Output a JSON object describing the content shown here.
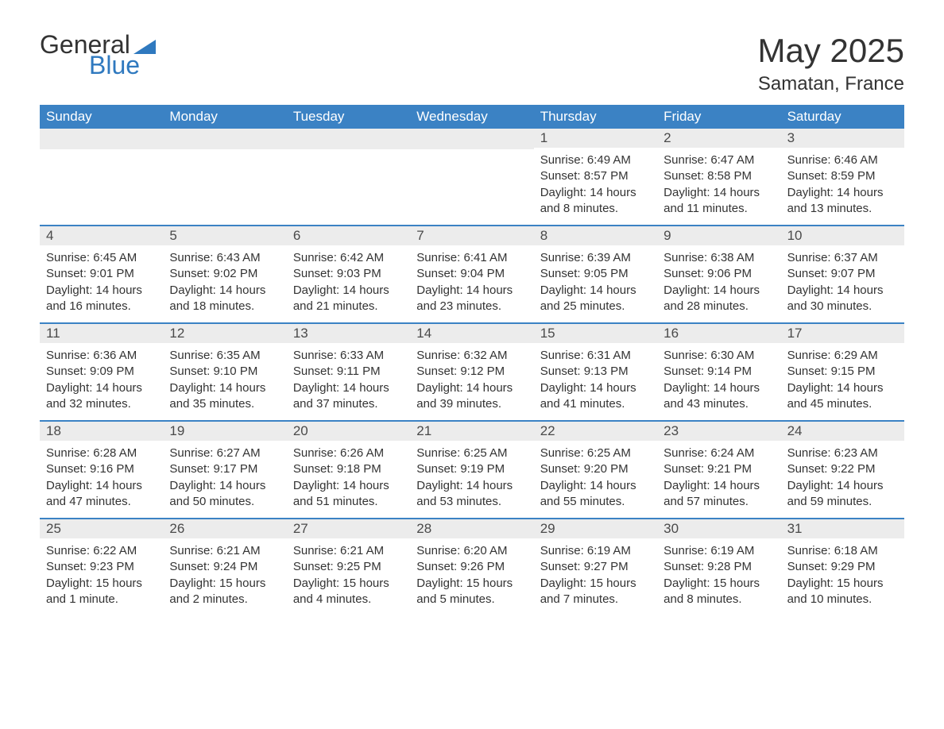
{
  "logo": {
    "text1": "General",
    "text2": "Blue"
  },
  "header": {
    "month_title": "May 2025",
    "location": "Samatan, France"
  },
  "colors": {
    "header_bg": "#3b82c4",
    "header_text": "#ffffff",
    "daynum_bg": "#ececec",
    "daynum_text": "#4a4a4a",
    "body_text": "#333333",
    "divider": "#3b82c4",
    "logo_accent": "#2f79bf"
  },
  "weekdays": [
    "Sunday",
    "Monday",
    "Tuesday",
    "Wednesday",
    "Thursday",
    "Friday",
    "Saturday"
  ],
  "weeks": [
    [
      {
        "day": "",
        "sunrise": "",
        "sunset": "",
        "daylight": ""
      },
      {
        "day": "",
        "sunrise": "",
        "sunset": "",
        "daylight": ""
      },
      {
        "day": "",
        "sunrise": "",
        "sunset": "",
        "daylight": ""
      },
      {
        "day": "",
        "sunrise": "",
        "sunset": "",
        "daylight": ""
      },
      {
        "day": "1",
        "sunrise": "Sunrise: 6:49 AM",
        "sunset": "Sunset: 8:57 PM",
        "daylight": "Daylight: 14 hours and 8 minutes."
      },
      {
        "day": "2",
        "sunrise": "Sunrise: 6:47 AM",
        "sunset": "Sunset: 8:58 PM",
        "daylight": "Daylight: 14 hours and 11 minutes."
      },
      {
        "day": "3",
        "sunrise": "Sunrise: 6:46 AM",
        "sunset": "Sunset: 8:59 PM",
        "daylight": "Daylight: 14 hours and 13 minutes."
      }
    ],
    [
      {
        "day": "4",
        "sunrise": "Sunrise: 6:45 AM",
        "sunset": "Sunset: 9:01 PM",
        "daylight": "Daylight: 14 hours and 16 minutes."
      },
      {
        "day": "5",
        "sunrise": "Sunrise: 6:43 AM",
        "sunset": "Sunset: 9:02 PM",
        "daylight": "Daylight: 14 hours and 18 minutes."
      },
      {
        "day": "6",
        "sunrise": "Sunrise: 6:42 AM",
        "sunset": "Sunset: 9:03 PM",
        "daylight": "Daylight: 14 hours and 21 minutes."
      },
      {
        "day": "7",
        "sunrise": "Sunrise: 6:41 AM",
        "sunset": "Sunset: 9:04 PM",
        "daylight": "Daylight: 14 hours and 23 minutes."
      },
      {
        "day": "8",
        "sunrise": "Sunrise: 6:39 AM",
        "sunset": "Sunset: 9:05 PM",
        "daylight": "Daylight: 14 hours and 25 minutes."
      },
      {
        "day": "9",
        "sunrise": "Sunrise: 6:38 AM",
        "sunset": "Sunset: 9:06 PM",
        "daylight": "Daylight: 14 hours and 28 minutes."
      },
      {
        "day": "10",
        "sunrise": "Sunrise: 6:37 AM",
        "sunset": "Sunset: 9:07 PM",
        "daylight": "Daylight: 14 hours and 30 minutes."
      }
    ],
    [
      {
        "day": "11",
        "sunrise": "Sunrise: 6:36 AM",
        "sunset": "Sunset: 9:09 PM",
        "daylight": "Daylight: 14 hours and 32 minutes."
      },
      {
        "day": "12",
        "sunrise": "Sunrise: 6:35 AM",
        "sunset": "Sunset: 9:10 PM",
        "daylight": "Daylight: 14 hours and 35 minutes."
      },
      {
        "day": "13",
        "sunrise": "Sunrise: 6:33 AM",
        "sunset": "Sunset: 9:11 PM",
        "daylight": "Daylight: 14 hours and 37 minutes."
      },
      {
        "day": "14",
        "sunrise": "Sunrise: 6:32 AM",
        "sunset": "Sunset: 9:12 PM",
        "daylight": "Daylight: 14 hours and 39 minutes."
      },
      {
        "day": "15",
        "sunrise": "Sunrise: 6:31 AM",
        "sunset": "Sunset: 9:13 PM",
        "daylight": "Daylight: 14 hours and 41 minutes."
      },
      {
        "day": "16",
        "sunrise": "Sunrise: 6:30 AM",
        "sunset": "Sunset: 9:14 PM",
        "daylight": "Daylight: 14 hours and 43 minutes."
      },
      {
        "day": "17",
        "sunrise": "Sunrise: 6:29 AM",
        "sunset": "Sunset: 9:15 PM",
        "daylight": "Daylight: 14 hours and 45 minutes."
      }
    ],
    [
      {
        "day": "18",
        "sunrise": "Sunrise: 6:28 AM",
        "sunset": "Sunset: 9:16 PM",
        "daylight": "Daylight: 14 hours and 47 minutes."
      },
      {
        "day": "19",
        "sunrise": "Sunrise: 6:27 AM",
        "sunset": "Sunset: 9:17 PM",
        "daylight": "Daylight: 14 hours and 50 minutes."
      },
      {
        "day": "20",
        "sunrise": "Sunrise: 6:26 AM",
        "sunset": "Sunset: 9:18 PM",
        "daylight": "Daylight: 14 hours and 51 minutes."
      },
      {
        "day": "21",
        "sunrise": "Sunrise: 6:25 AM",
        "sunset": "Sunset: 9:19 PM",
        "daylight": "Daylight: 14 hours and 53 minutes."
      },
      {
        "day": "22",
        "sunrise": "Sunrise: 6:25 AM",
        "sunset": "Sunset: 9:20 PM",
        "daylight": "Daylight: 14 hours and 55 minutes."
      },
      {
        "day": "23",
        "sunrise": "Sunrise: 6:24 AM",
        "sunset": "Sunset: 9:21 PM",
        "daylight": "Daylight: 14 hours and 57 minutes."
      },
      {
        "day": "24",
        "sunrise": "Sunrise: 6:23 AM",
        "sunset": "Sunset: 9:22 PM",
        "daylight": "Daylight: 14 hours and 59 minutes."
      }
    ],
    [
      {
        "day": "25",
        "sunrise": "Sunrise: 6:22 AM",
        "sunset": "Sunset: 9:23 PM",
        "daylight": "Daylight: 15 hours and 1 minute."
      },
      {
        "day": "26",
        "sunrise": "Sunrise: 6:21 AM",
        "sunset": "Sunset: 9:24 PM",
        "daylight": "Daylight: 15 hours and 2 minutes."
      },
      {
        "day": "27",
        "sunrise": "Sunrise: 6:21 AM",
        "sunset": "Sunset: 9:25 PM",
        "daylight": "Daylight: 15 hours and 4 minutes."
      },
      {
        "day": "28",
        "sunrise": "Sunrise: 6:20 AM",
        "sunset": "Sunset: 9:26 PM",
        "daylight": "Daylight: 15 hours and 5 minutes."
      },
      {
        "day": "29",
        "sunrise": "Sunrise: 6:19 AM",
        "sunset": "Sunset: 9:27 PM",
        "daylight": "Daylight: 15 hours and 7 minutes."
      },
      {
        "day": "30",
        "sunrise": "Sunrise: 6:19 AM",
        "sunset": "Sunset: 9:28 PM",
        "daylight": "Daylight: 15 hours and 8 minutes."
      },
      {
        "day": "31",
        "sunrise": "Sunrise: 6:18 AM",
        "sunset": "Sunset: 9:29 PM",
        "daylight": "Daylight: 15 hours and 10 minutes."
      }
    ]
  ]
}
